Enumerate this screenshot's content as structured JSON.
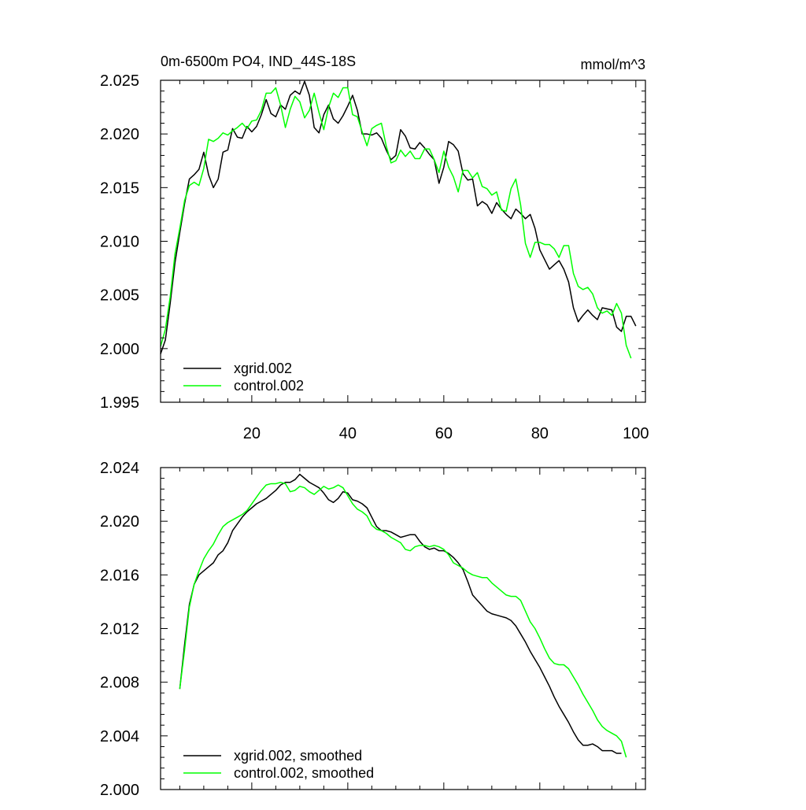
{
  "chart_data": [
    {
      "type": "line",
      "title": "0m-6500m PO4, IND_44S-18S",
      "units": "mmol/m^3",
      "xlim": [
        1,
        102
      ],
      "ylim": [
        1.995,
        2.025
      ],
      "x_ticks": [
        20,
        40,
        60,
        80,
        100
      ],
      "x_tick_labels": [
        "20",
        "40",
        "60",
        "80",
        "100"
      ],
      "y_ticks": [
        1.995,
        2.0,
        2.005,
        2.01,
        2.015,
        2.02,
        2.025
      ],
      "y_tick_labels": [
        "1.995",
        "2.000",
        "2.005",
        "2.010",
        "2.015",
        "2.020",
        "2.025"
      ],
      "legend_position": "bottom-left",
      "series": [
        {
          "name": "xgrid.002",
          "color": "#000000",
          "x_start": 1,
          "values": [
            1.9995,
            2.0008,
            2.0042,
            2.008,
            2.0108,
            2.0135,
            2.0158,
            2.0162,
            2.0167,
            2.0183,
            2.0162,
            2.015,
            2.0158,
            2.0183,
            2.0185,
            2.0205,
            2.0197,
            2.0196,
            2.0207,
            2.0202,
            2.0207,
            2.0218,
            2.0232,
            2.0219,
            2.0216,
            2.0227,
            2.0223,
            2.0236,
            2.024,
            2.0237,
            2.0249,
            2.0236,
            2.0206,
            2.0201,
            2.0218,
            2.0227,
            2.0214,
            2.021,
            2.0217,
            2.0226,
            2.0236,
            2.0222,
            2.02,
            2.02,
            2.0199,
            2.0201,
            2.0196,
            2.0185,
            2.0176,
            2.018,
            2.0204,
            2.0198,
            2.0187,
            2.0186,
            2.0192,
            2.0187,
            2.0181,
            2.0176,
            2.0154,
            2.0169,
            2.0193,
            2.019,
            2.0184,
            2.0163,
            2.0157,
            2.0158,
            2.0133,
            2.0137,
            2.0134,
            2.0126,
            2.0136,
            2.013,
            2.0125,
            2.0121,
            2.013,
            2.0126,
            2.0121,
            2.0125,
            2.0112,
            2.0092,
            2.0083,
            2.0074,
            2.0078,
            2.0082,
            2.0074,
            2.0062,
            2.0038,
            2.0025,
            2.0031,
            2.0036,
            2.0031,
            2.0027,
            2.0038,
            2.0037,
            2.0036,
            2.002,
            2.0016,
            2.003,
            2.003,
            2.0021
          ]
        },
        {
          "name": "control.002",
          "color": "#00ff00",
          "x_start": 1,
          "values": [
            2.0002,
            2.0018,
            2.0048,
            2.0088,
            2.0112,
            2.0138,
            2.0152,
            2.0155,
            2.0152,
            2.0168,
            2.0195,
            2.0193,
            2.0196,
            2.0201,
            2.0199,
            2.0203,
            2.0206,
            2.021,
            2.0205,
            2.0212,
            2.0213,
            2.0222,
            2.0238,
            2.0238,
            2.0243,
            2.0227,
            2.0206,
            2.0223,
            2.0235,
            2.023,
            2.0215,
            2.0222,
            2.0238,
            2.022,
            2.0204,
            2.0225,
            2.0238,
            2.0234,
            2.0243,
            2.0243,
            2.0218,
            2.0216,
            2.0202,
            2.0189,
            2.0205,
            2.0208,
            2.021,
            2.0189,
            2.0173,
            2.0175,
            2.0185,
            2.0179,
            2.0184,
            2.0177,
            2.0177,
            2.0186,
            2.0186,
            2.0176,
            2.0164,
            2.0184,
            2.0169,
            2.016,
            2.0146,
            2.0166,
            2.0166,
            2.0159,
            2.0164,
            2.0151,
            2.0149,
            2.0143,
            2.0146,
            2.0129,
            2.0128,
            2.0149,
            2.0158,
            2.0134,
            2.0098,
            2.0085,
            2.0099,
            2.0099,
            2.0097,
            2.0097,
            2.0093,
            2.0085,
            2.0096,
            2.0096,
            2.007,
            2.0058,
            2.0055,
            2.0057,
            2.0051,
            2.0038,
            2.0033,
            2.0035,
            2.0031,
            2.0042,
            2.0033,
            2.0003,
            1.9991
          ]
        }
      ]
    },
    {
      "type": "line",
      "xlim": [
        1,
        102
      ],
      "ylim": [
        2.0,
        2.024
      ],
      "x_ticks": [
        20,
        40,
        60,
        80,
        100
      ],
      "x_tick_labels": [],
      "y_ticks": [
        2.0,
        2.004,
        2.008,
        2.012,
        2.016,
        2.02,
        2.024
      ],
      "y_tick_labels": [
        "2.000",
        "2.004",
        "2.008",
        "2.012",
        "2.016",
        "2.020",
        "2.024"
      ],
      "legend_position": "bottom-left",
      "series": [
        {
          "name": "xgrid.002, smoothed",
          "color": "#000000",
          "x_start": 5,
          "values": [
            2.0075,
            2.0108,
            2.0138,
            2.0153,
            2.016,
            2.0163,
            2.0166,
            2.0169,
            2.0175,
            2.0178,
            2.0184,
            2.0193,
            2.0198,
            2.0203,
            2.0207,
            2.021,
            2.0213,
            2.0215,
            2.0217,
            2.022,
            2.0223,
            2.0227,
            2.0229,
            2.0229,
            2.0231,
            2.0235,
            2.0232,
            2.0229,
            2.0227,
            2.0225,
            2.0221,
            2.0216,
            2.0214,
            2.0217,
            2.0222,
            2.0221,
            2.0216,
            2.0215,
            2.0213,
            2.021,
            2.0203,
            2.0196,
            2.0193,
            2.0193,
            2.0192,
            2.019,
            2.0188,
            2.0189,
            2.019,
            2.019,
            2.0185,
            2.0181,
            2.0179,
            2.018,
            2.0178,
            2.0178,
            2.0176,
            2.0173,
            2.0169,
            2.0164,
            2.0155,
            2.0145,
            2.0141,
            2.0137,
            2.0133,
            2.0131,
            2.013,
            2.0129,
            2.0128,
            2.0126,
            2.0122,
            2.0116,
            2.011,
            2.0103,
            2.0097,
            2.0091,
            2.0084,
            2.0077,
            2.0069,
            2.0062,
            2.0056,
            2.005,
            2.0043,
            2.0037,
            2.0033,
            2.0033,
            2.0034,
            2.0032,
            2.0029,
            2.0029,
            2.0029,
            2.0027,
            2.0027
          ]
        },
        {
          "name": "control.002, smoothed",
          "color": "#00ff00",
          "x_start": 5,
          "values": [
            2.0075,
            2.0104,
            2.0136,
            2.0153,
            2.0163,
            2.0172,
            2.0178,
            2.0183,
            2.019,
            2.0196,
            2.0199,
            2.0201,
            2.0203,
            2.0205,
            2.0208,
            2.0213,
            2.0218,
            2.0223,
            2.0227,
            2.0228,
            2.0228,
            2.0229,
            2.0228,
            2.0222,
            2.0223,
            2.0226,
            2.0225,
            2.0222,
            2.022,
            2.0223,
            2.0226,
            2.0224,
            2.0225,
            2.0227,
            2.0225,
            2.0219,
            2.0213,
            2.0209,
            2.0207,
            2.0204,
            2.0197,
            2.0194,
            2.0193,
            2.0191,
            2.0188,
            2.0186,
            2.0184,
            2.0179,
            2.0178,
            2.0181,
            2.0182,
            2.0182,
            2.0181,
            2.0182,
            2.0181,
            2.0179,
            2.0175,
            2.0169,
            2.0167,
            2.0165,
            2.0162,
            2.016,
            2.0159,
            2.0158,
            2.0158,
            2.0154,
            2.0151,
            2.0148,
            2.0145,
            2.0144,
            2.0144,
            2.0141,
            2.0133,
            2.0125,
            2.012,
            2.0113,
            2.0105,
            2.0098,
            2.0094,
            2.0093,
            2.0093,
            2.009,
            2.0084,
            2.0078,
            2.0071,
            2.0065,
            2.0059,
            2.0052,
            2.0047,
            2.0044,
            2.0042,
            2.004,
            2.0036,
            2.0024
          ]
        }
      ]
    }
  ]
}
